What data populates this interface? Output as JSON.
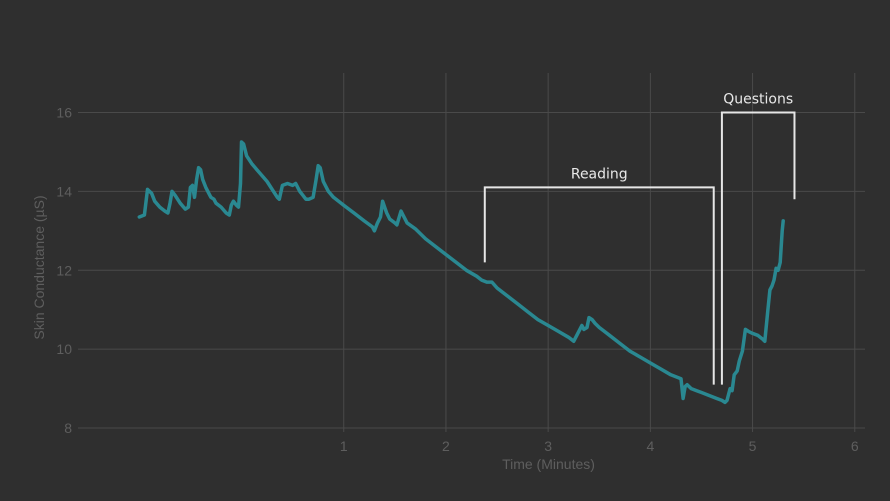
{
  "chart_data": {
    "type": "line",
    "xlabel": "Time (Minutes)",
    "ylabel": "Skin Conductance (µS)",
    "xlim": [
      -1.6,
      6.1
    ],
    "ylim": [
      7.9,
      17.0
    ],
    "x_ticks": [
      1,
      2,
      3,
      4,
      5,
      6
    ],
    "y_ticks": [
      8,
      10,
      12,
      14,
      16
    ],
    "grid": true,
    "series": [
      {
        "color": "#2a8891",
        "points": [
          [
            -1.0,
            13.35
          ],
          [
            -0.95,
            13.4
          ],
          [
            -0.92,
            14.05
          ],
          [
            -0.88,
            13.95
          ],
          [
            -0.85,
            13.75
          ],
          [
            -0.8,
            13.6
          ],
          [
            -0.75,
            13.5
          ],
          [
            -0.72,
            13.45
          ],
          [
            -0.7,
            13.7
          ],
          [
            -0.68,
            14.0
          ],
          [
            -0.65,
            13.9
          ],
          [
            -0.6,
            13.7
          ],
          [
            -0.55,
            13.55
          ],
          [
            -0.52,
            13.6
          ],
          [
            -0.5,
            14.1
          ],
          [
            -0.48,
            14.15
          ],
          [
            -0.46,
            13.85
          ],
          [
            -0.44,
            14.3
          ],
          [
            -0.42,
            14.6
          ],
          [
            -0.4,
            14.55
          ],
          [
            -0.38,
            14.3
          ],
          [
            -0.35,
            14.1
          ],
          [
            -0.32,
            13.95
          ],
          [
            -0.3,
            13.85
          ],
          [
            -0.27,
            13.8
          ],
          [
            -0.25,
            13.7
          ],
          [
            -0.2,
            13.6
          ],
          [
            -0.15,
            13.45
          ],
          [
            -0.12,
            13.4
          ],
          [
            -0.1,
            13.65
          ],
          [
            -0.08,
            13.75
          ],
          [
            -0.05,
            13.65
          ],
          [
            -0.03,
            13.6
          ],
          [
            -0.01,
            14.2
          ],
          [
            0.0,
            15.25
          ],
          [
            0.02,
            15.2
          ],
          [
            0.05,
            14.9
          ],
          [
            0.1,
            14.7
          ],
          [
            0.15,
            14.55
          ],
          [
            0.2,
            14.4
          ],
          [
            0.25,
            14.25
          ],
          [
            0.3,
            14.05
          ],
          [
            0.35,
            13.85
          ],
          [
            0.37,
            13.8
          ],
          [
            0.4,
            14.15
          ],
          [
            0.45,
            14.2
          ],
          [
            0.5,
            14.15
          ],
          [
            0.53,
            14.2
          ],
          [
            0.57,
            14.0
          ],
          [
            0.6,
            13.9
          ],
          [
            0.63,
            13.8
          ],
          [
            0.66,
            13.8
          ],
          [
            0.7,
            13.85
          ],
          [
            0.73,
            14.3
          ],
          [
            0.75,
            14.65
          ],
          [
            0.77,
            14.6
          ],
          [
            0.8,
            14.25
          ],
          [
            0.85,
            14.0
          ],
          [
            0.9,
            13.85
          ],
          [
            1.0,
            13.65
          ],
          [
            1.1,
            13.45
          ],
          [
            1.2,
            13.25
          ],
          [
            1.28,
            13.1
          ],
          [
            1.3,
            13.0
          ],
          [
            1.33,
            13.2
          ],
          [
            1.36,
            13.35
          ],
          [
            1.38,
            13.75
          ],
          [
            1.4,
            13.6
          ],
          [
            1.42,
            13.45
          ],
          [
            1.45,
            13.3
          ],
          [
            1.5,
            13.2
          ],
          [
            1.52,
            13.15
          ],
          [
            1.56,
            13.5
          ],
          [
            1.58,
            13.4
          ],
          [
            1.62,
            13.2
          ],
          [
            1.7,
            13.05
          ],
          [
            1.8,
            12.8
          ],
          [
            1.9,
            12.6
          ],
          [
            2.0,
            12.4
          ],
          [
            2.1,
            12.2
          ],
          [
            2.2,
            12.0
          ],
          [
            2.3,
            11.85
          ],
          [
            2.35,
            11.75
          ],
          [
            2.4,
            11.7
          ],
          [
            2.45,
            11.7
          ],
          [
            2.5,
            11.55
          ],
          [
            2.6,
            11.35
          ],
          [
            2.7,
            11.15
          ],
          [
            2.8,
            10.95
          ],
          [
            2.9,
            10.75
          ],
          [
            3.0,
            10.6
          ],
          [
            3.1,
            10.45
          ],
          [
            3.2,
            10.3
          ],
          [
            3.25,
            10.2
          ],
          [
            3.3,
            10.45
          ],
          [
            3.33,
            10.6
          ],
          [
            3.35,
            10.5
          ],
          [
            3.38,
            10.55
          ],
          [
            3.4,
            10.8
          ],
          [
            3.43,
            10.75
          ],
          [
            3.46,
            10.65
          ],
          [
            3.5,
            10.55
          ],
          [
            3.55,
            10.45
          ],
          [
            3.6,
            10.35
          ],
          [
            3.7,
            10.15
          ],
          [
            3.8,
            9.95
          ],
          [
            3.9,
            9.8
          ],
          [
            4.0,
            9.65
          ],
          [
            4.1,
            9.5
          ],
          [
            4.2,
            9.35
          ],
          [
            4.3,
            9.25
          ],
          [
            4.32,
            8.75
          ],
          [
            4.34,
            9.05
          ],
          [
            4.36,
            9.1
          ],
          [
            4.4,
            9.0
          ],
          [
            4.45,
            8.95
          ],
          [
            4.5,
            8.9
          ],
          [
            4.55,
            8.85
          ],
          [
            4.6,
            8.8
          ],
          [
            4.65,
            8.75
          ],
          [
            4.7,
            8.7
          ],
          [
            4.73,
            8.65
          ],
          [
            4.75,
            8.7
          ],
          [
            4.78,
            9.0
          ],
          [
            4.8,
            8.95
          ],
          [
            4.82,
            9.35
          ],
          [
            4.85,
            9.45
          ],
          [
            4.87,
            9.7
          ],
          [
            4.9,
            9.95
          ],
          [
            4.93,
            10.5
          ],
          [
            4.96,
            10.45
          ],
          [
            5.0,
            10.4
          ],
          [
            5.05,
            10.35
          ],
          [
            5.1,
            10.25
          ],
          [
            5.12,
            10.2
          ],
          [
            5.15,
            11.0
          ],
          [
            5.17,
            11.5
          ],
          [
            5.19,
            11.6
          ],
          [
            5.21,
            11.75
          ],
          [
            5.23,
            12.05
          ],
          [
            5.25,
            12.0
          ],
          [
            5.27,
            12.2
          ],
          [
            5.29,
            13.0
          ],
          [
            5.3,
            13.25
          ]
        ]
      }
    ],
    "annotations": [
      {
        "label": "Reading",
        "x_start": 2.38,
        "x_end": 4.62,
        "y_top": 14.1,
        "y_left_bottom": 12.2,
        "y_right_bottom": 9.1
      },
      {
        "label": "Questions",
        "x_start": 4.7,
        "x_end": 5.41,
        "y_top": 16.0,
        "y_left_bottom": 9.1,
        "y_right_bottom": 13.8
      }
    ]
  }
}
